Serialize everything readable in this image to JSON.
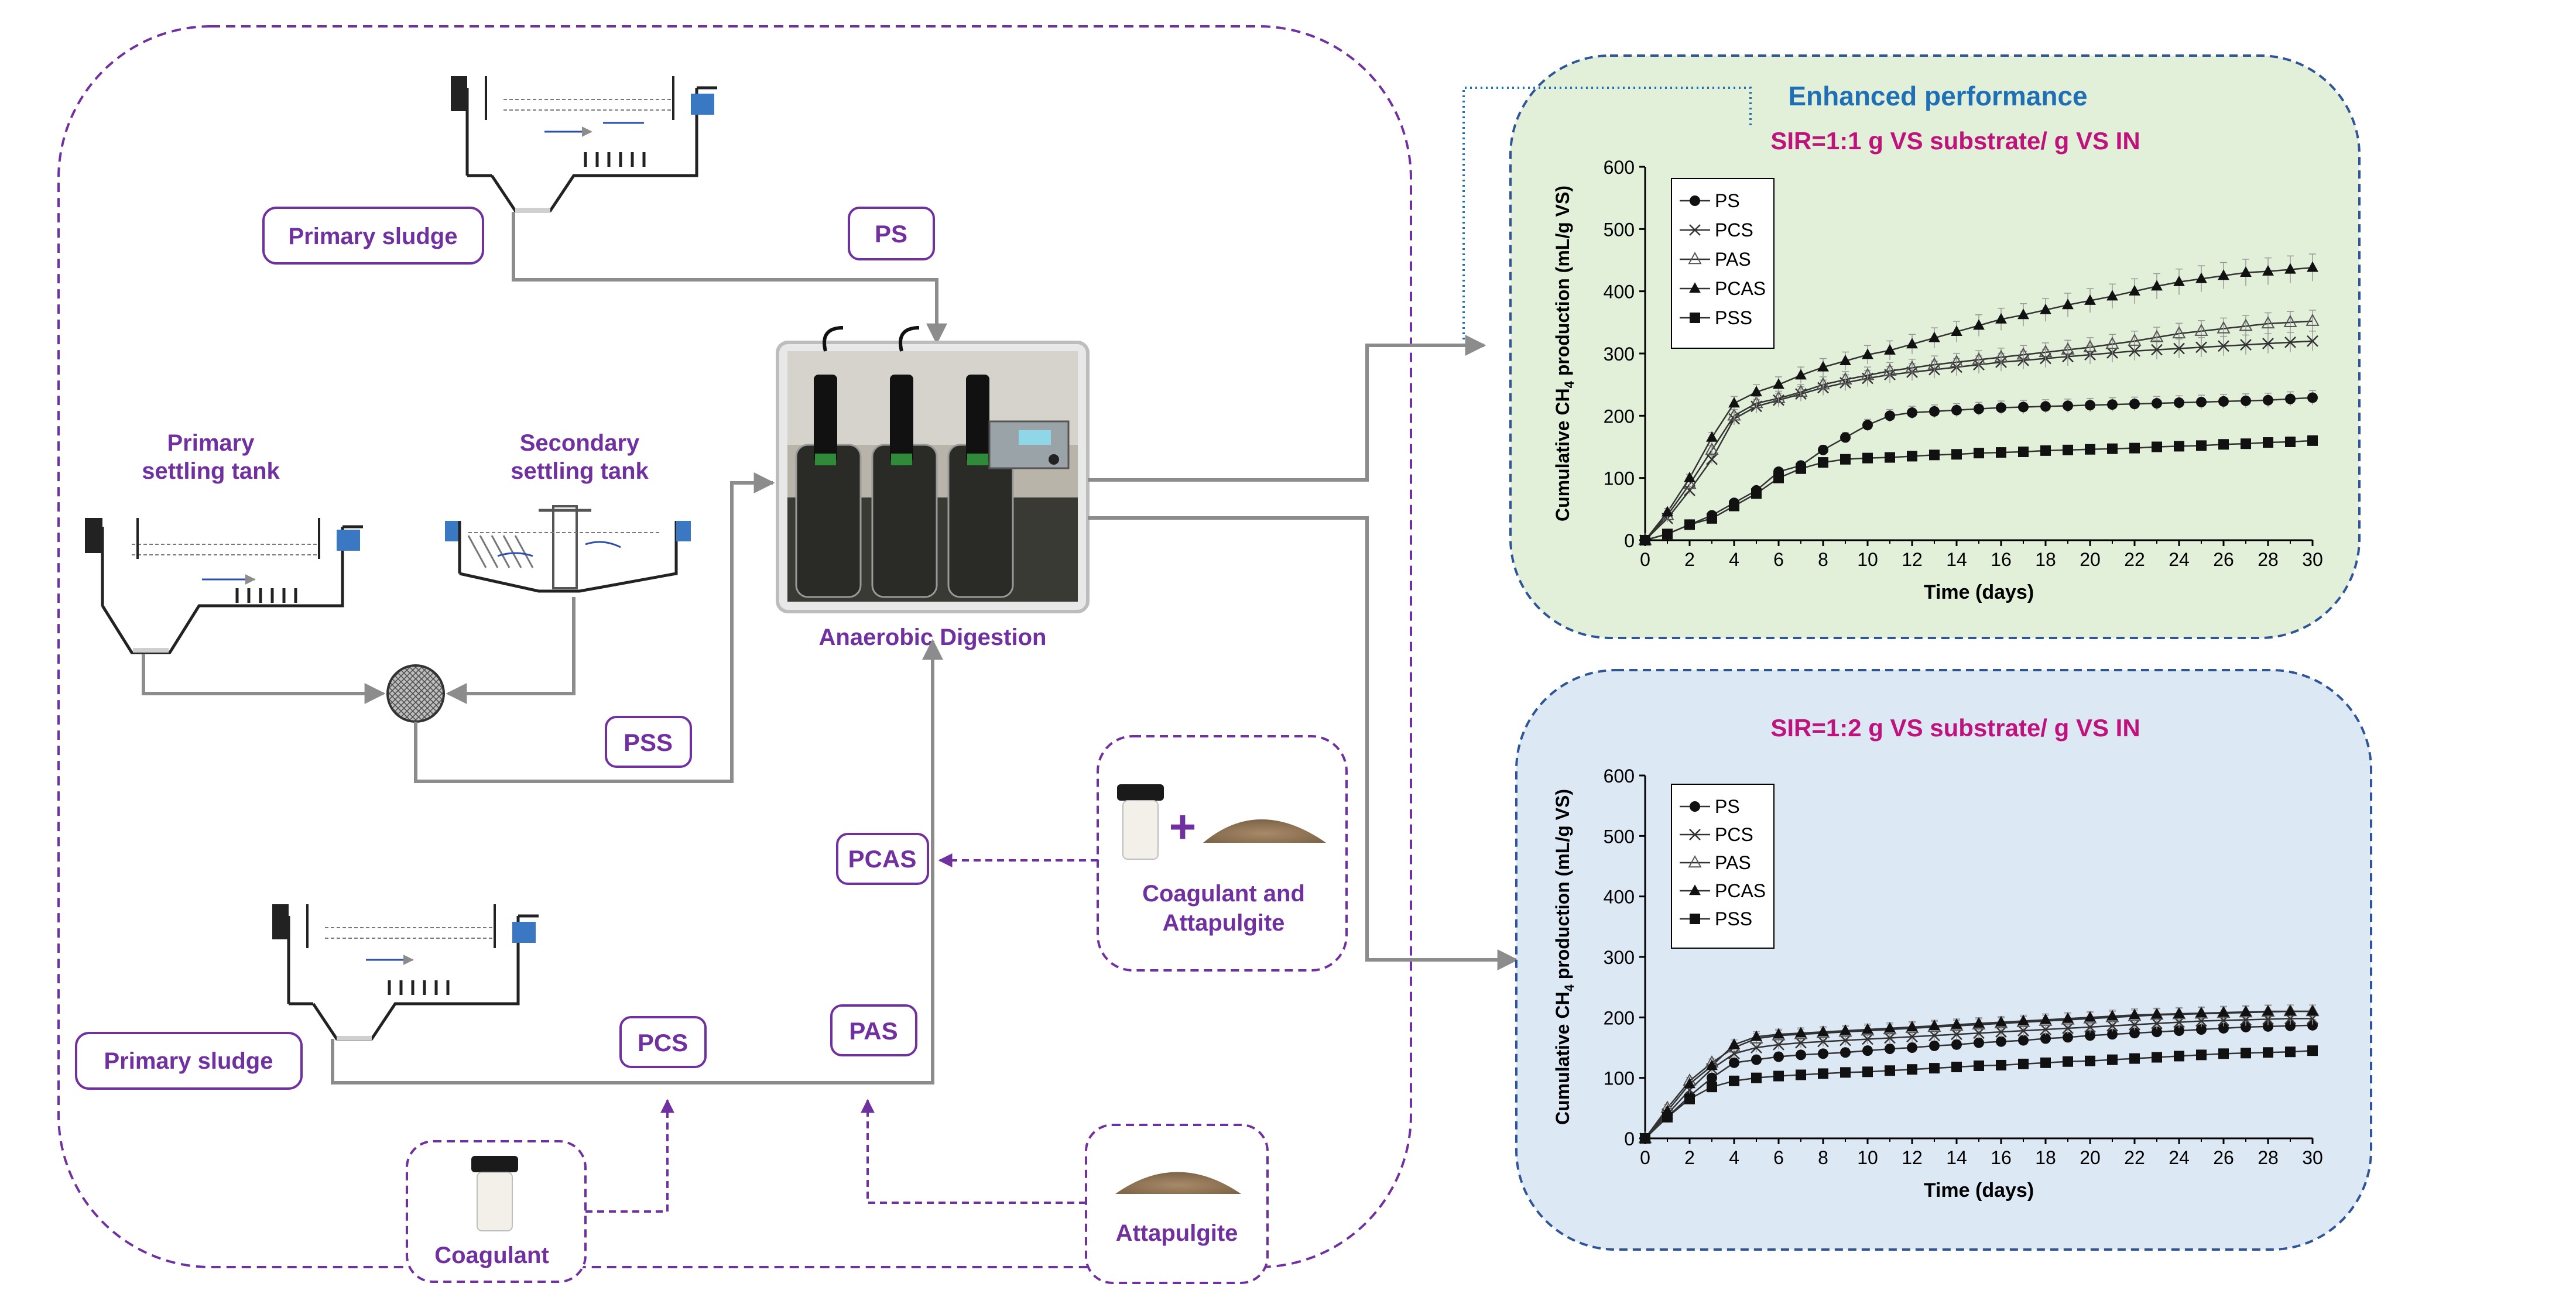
{
  "colors": {
    "purple": "#7030a0",
    "magenta": "#c0127c",
    "blue_title": "#1f6fb5",
    "panel_green": "#e2efd9",
    "panel_blue": "#dde8f5",
    "panel_border": "#2e5597",
    "arrow_grey": "#8c8c8c"
  },
  "labels": {
    "primary_sludge_top": "Primary sludge",
    "ps_tag": "PS",
    "primary_settling_tank_1": "Primary",
    "primary_settling_tank_2": "settling tank",
    "secondary_settling_tank_1": "Secondary",
    "secondary_settling_tank_2": "settling tank",
    "pss_tag": "PSS",
    "anaerobic_digestion": "Anaerobic Digestion",
    "pcas_tag": "PCAS",
    "pas_tag": "PAS",
    "pcs_tag": "PCS",
    "primary_sludge_bottom": "Primary sludge",
    "coagulant_attapulgite_1": "Coagulant and",
    "coagulant_attapulgite_2": "Attapulgite",
    "coagulant": "Coagulant",
    "attapulgite": "Attapulgite",
    "enhanced_performance": "Enhanced performance"
  },
  "chart_data": [
    {
      "type": "line",
      "title": "SIR=1:1 g VS substrate/ g VS IN",
      "xlabel": "Time (days)",
      "ylabel_pre": "Cumulative CH",
      "ylabel_sub": "4",
      "ylabel_post": " production  (mL/g VS)",
      "xlim": [
        0,
        30
      ],
      "ylim": [
        0,
        600
      ],
      "xticks": [
        0,
        2,
        4,
        6,
        8,
        10,
        12,
        14,
        16,
        18,
        20,
        22,
        24,
        26,
        28,
        30
      ],
      "yticks": [
        0,
        100,
        200,
        300,
        400,
        500,
        600
      ],
      "x": [
        0,
        1,
        2,
        3,
        4,
        5,
        6,
        7,
        8,
        9,
        10,
        11,
        12,
        13,
        14,
        15,
        16,
        17,
        18,
        19,
        20,
        21,
        22,
        23,
        24,
        25,
        26,
        27,
        28,
        29,
        30
      ],
      "series": [
        {
          "name": "PS",
          "marker": "circle",
          "values": [
            0,
            10,
            25,
            40,
            60,
            80,
            110,
            120,
            145,
            165,
            185,
            200,
            205,
            207,
            209,
            211,
            213,
            214,
            215,
            216,
            217,
            218,
            219,
            220,
            221,
            222,
            223,
            224,
            225,
            227,
            229
          ]
        },
        {
          "name": "PCS",
          "marker": "x",
          "values": [
            0,
            35,
            80,
            130,
            195,
            215,
            225,
            235,
            245,
            253,
            260,
            266,
            270,
            274,
            278,
            282,
            286,
            289,
            292,
            295,
            298,
            301,
            304,
            306,
            308,
            310,
            312,
            314,
            316,
            318,
            320
          ]
        },
        {
          "name": "PAS",
          "marker": "triangle-open",
          "values": [
            0,
            40,
            90,
            145,
            200,
            220,
            228,
            238,
            250,
            258,
            265,
            272,
            277,
            282,
            286,
            290,
            294,
            298,
            302,
            306,
            310,
            315,
            320,
            326,
            332,
            336,
            340,
            344,
            348,
            350,
            352
          ]
        },
        {
          "name": "PCAS",
          "marker": "triangle",
          "values": [
            0,
            45,
            100,
            165,
            220,
            238,
            250,
            265,
            278,
            288,
            298,
            305,
            315,
            325,
            335,
            345,
            355,
            362,
            370,
            378,
            385,
            392,
            400,
            408,
            415,
            420,
            425,
            430,
            432,
            435,
            438
          ]
        },
        {
          "name": "PSS",
          "marker": "square",
          "values": [
            0,
            10,
            25,
            35,
            55,
            75,
            100,
            115,
            125,
            130,
            132,
            133,
            135,
            137,
            138,
            140,
            141,
            142,
            144,
            145,
            146,
            147,
            148,
            150,
            151,
            152,
            154,
            155,
            157,
            158,
            160
          ]
        }
      ]
    },
    {
      "type": "line",
      "title": "SIR=1:2 g VS substrate/ g VS IN",
      "xlabel": "Time (days)",
      "ylabel_pre": "Cumulative CH",
      "ylabel_sub": "4",
      "ylabel_post": " production  (mL/g VS)",
      "xlim": [
        0,
        30
      ],
      "ylim": [
        0,
        600
      ],
      "xticks": [
        0,
        2,
        4,
        6,
        8,
        10,
        12,
        14,
        16,
        18,
        20,
        22,
        24,
        26,
        28,
        30
      ],
      "yticks": [
        0,
        100,
        200,
        300,
        400,
        500,
        600
      ],
      "x": [
        0,
        1,
        2,
        3,
        4,
        5,
        6,
        7,
        8,
        9,
        10,
        11,
        12,
        13,
        14,
        15,
        16,
        17,
        18,
        19,
        20,
        21,
        22,
        23,
        24,
        25,
        26,
        27,
        28,
        29,
        30
      ],
      "series": [
        {
          "name": "PS",
          "marker": "circle",
          "values": [
            0,
            35,
            70,
            100,
            125,
            130,
            135,
            138,
            140,
            142,
            145,
            148,
            150,
            153,
            155,
            158,
            160,
            162,
            165,
            167,
            170,
            172,
            174,
            176,
            178,
            180,
            182,
            184,
            185,
            186,
            187
          ]
        },
        {
          "name": "PCS",
          "marker": "x",
          "values": [
            0,
            40,
            80,
            115,
            140,
            150,
            155,
            158,
            160,
            162,
            164,
            166,
            168,
            170,
            172,
            174,
            176,
            178,
            180,
            182,
            184,
            186,
            188,
            190,
            192,
            194,
            195,
            196,
            197,
            198,
            198
          ]
        },
        {
          "name": "PAS",
          "marker": "triangle-open",
          "values": [
            0,
            50,
            95,
            125,
            150,
            165,
            170,
            172,
            174,
            176,
            178,
            180,
            182,
            184,
            186,
            188,
            190,
            192,
            194,
            196,
            198,
            200,
            202,
            204,
            205,
            206,
            207,
            208,
            209,
            210,
            210
          ]
        },
        {
          "name": "PCAS",
          "marker": "triangle",
          "values": [
            0,
            45,
            90,
            120,
            155,
            168,
            172,
            174,
            176,
            178,
            180,
            182,
            184,
            186,
            188,
            190,
            192,
            194,
            196,
            198,
            200,
            202,
            204,
            205,
            206,
            207,
            208,
            209,
            210,
            210,
            210
          ]
        },
        {
          "name": "PSS",
          "marker": "square",
          "values": [
            0,
            35,
            65,
            85,
            95,
            100,
            103,
            105,
            107,
            109,
            110,
            112,
            114,
            116,
            118,
            120,
            121,
            123,
            125,
            127,
            128,
            130,
            132,
            134,
            136,
            138,
            140,
            141,
            142,
            143,
            145
          ]
        }
      ]
    }
  ]
}
